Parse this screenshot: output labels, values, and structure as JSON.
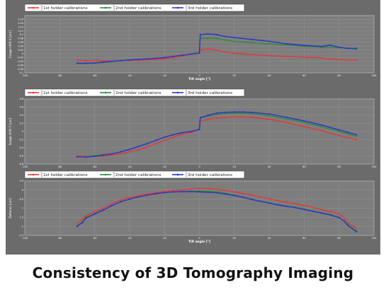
{
  "caption": "Consistency of 3D Tomography Imaging",
  "colors": {
    "figure_background": "#6b6b6b",
    "plot_background": "#7d7d7d",
    "grid": "#9a9a9a",
    "text": "#ffffff"
  },
  "chart_data": [
    {
      "type": "line",
      "title": "",
      "xlabel": "Tilt angle [°]",
      "ylabel": "Image shift X [um]",
      "xlim": [
        -100,
        100
      ],
      "ylim": [
        -0.1,
        0.2
      ],
      "xticks": [
        -100,
        -80,
        -60,
        -40,
        -20,
        0,
        20,
        40,
        60,
        80,
        100
      ],
      "yticks": [
        -0.1,
        -0.08,
        -0.06,
        -0.04,
        -0.02,
        0,
        0.02,
        0.04,
        0.06,
        0.08,
        0.1,
        0.12,
        0.14,
        0.16,
        0.18
      ],
      "yticklabels": [
        "-0.1",
        "-0.08",
        "-0.06",
        "-0.04",
        "-0.02",
        "0",
        "0.02",
        "0.04",
        "0.06",
        "0.08",
        "0.1",
        "0.12",
        "0.14",
        "0.16",
        "0.18"
      ],
      "grid": true,
      "legend": "top-left",
      "series": [
        {
          "name": "1st holder calibrations",
          "color": "#e8353a",
          "x": [
            -70,
            -65,
            -60,
            -55,
            -50,
            -45,
            -40,
            -35,
            -30,
            -25,
            -20,
            -15,
            -10,
            -5,
            0,
            0.5,
            5,
            10,
            15,
            20,
            30,
            40,
            50,
            60,
            70,
            75,
            80,
            85,
            90
          ],
          "y": [
            -0.034,
            -0.037,
            -0.035,
            -0.038,
            -0.04,
            -0.036,
            -0.035,
            -0.034,
            -0.032,
            -0.03,
            -0.027,
            -0.02,
            -0.012,
            -0.003,
            0.004,
            0.02,
            0.025,
            0.018,
            0.008,
            0.002,
            -0.004,
            -0.01,
            -0.014,
            -0.018,
            -0.022,
            -0.027,
            -0.03,
            -0.034,
            -0.033
          ]
        },
        {
          "name": "2nd holder calibrations",
          "color": "#2a8c3a",
          "x": [
            -70,
            -65,
            -60,
            -55,
            -50,
            -45,
            -40,
            -35,
            -30,
            -25,
            -20,
            -15,
            -10,
            -5,
            0,
            0.5,
            5,
            10,
            15,
            20,
            30,
            40,
            50,
            60,
            70,
            75,
            80,
            85,
            90
          ],
          "y": [
            -0.048,
            -0.05,
            -0.05,
            -0.046,
            -0.04,
            -0.036,
            -0.032,
            -0.03,
            -0.027,
            -0.024,
            -0.02,
            -0.014,
            -0.008,
            -0.002,
            0.004,
            0.08,
            0.082,
            0.08,
            0.072,
            0.064,
            0.058,
            0.052,
            0.046,
            0.04,
            0.035,
            0.034,
            0.032,
            0.028,
            0.024
          ]
        },
        {
          "name": "3rd holder calibrations",
          "color": "#2b34c8",
          "x": [
            -70,
            -65,
            -60,
            -55,
            -50,
            -45,
            -40,
            -35,
            -30,
            -25,
            -20,
            -15,
            -10,
            -5,
            0,
            0.5,
            5,
            10,
            15,
            20,
            30,
            40,
            50,
            60,
            70,
            75,
            80,
            85,
            90
          ],
          "y": [
            -0.05,
            -0.05,
            -0.048,
            -0.044,
            -0.04,
            -0.036,
            -0.033,
            -0.03,
            -0.027,
            -0.024,
            -0.02,
            -0.014,
            -0.008,
            -0.002,
            0.004,
            0.1,
            0.104,
            0.1,
            0.09,
            0.085,
            0.075,
            0.065,
            0.052,
            0.044,
            0.038,
            0.045,
            0.034,
            0.028,
            0.028
          ]
        }
      ]
    },
    {
      "type": "line",
      "title": "",
      "xlabel": "",
      "ylabel": "Image shift Y [um]",
      "xlim": [
        -100,
        100
      ],
      "ylim": [
        -0.8,
        0.8
      ],
      "xticks": [
        -100,
        -80,
        -60,
        -40,
        -20,
        0,
        20,
        40,
        60,
        80,
        100
      ],
      "yticks": [
        -0.8,
        -0.6,
        -0.4,
        -0.2,
        0,
        0.2,
        0.4,
        0.6,
        0.8
      ],
      "yticklabels": [
        "-0.8",
        "-0.6",
        "-0.4",
        "-0.2",
        "0",
        "0.2",
        "0.4",
        "0.6",
        "0.8"
      ],
      "grid": true,
      "legend": "top-left",
      "series": [
        {
          "name": "1st holder calibrations",
          "color": "#e8353a",
          "x": [
            -70,
            -65,
            -60,
            -55,
            -50,
            -45,
            -40,
            -35,
            -30,
            -25,
            -20,
            -15,
            -10,
            -5,
            0,
            0.5,
            5,
            10,
            15,
            20,
            25,
            30,
            40,
            50,
            60,
            70,
            80,
            85,
            90
          ],
          "y": [
            -0.6,
            -0.61,
            -0.61,
            -0.6,
            -0.58,
            -0.55,
            -0.5,
            -0.45,
            -0.38,
            -0.3,
            -0.22,
            -0.14,
            -0.07,
            -0.03,
            0.05,
            0.25,
            0.3,
            0.33,
            0.35,
            0.36,
            0.36,
            0.35,
            0.3,
            0.22,
            0.12,
            0.02,
            -0.1,
            -0.15,
            -0.2
          ]
        },
        {
          "name": "2nd holder calibrations",
          "color": "#2a8c3a",
          "x": [
            -70,
            -65,
            -60,
            -55,
            -50,
            -45,
            -40,
            -35,
            -30,
            -25,
            -20,
            -15,
            -10,
            -5,
            0,
            0.5,
            5,
            10,
            15,
            20,
            25,
            30,
            40,
            50,
            60,
            70,
            80,
            85,
            90
          ],
          "y": [
            -0.62,
            -0.62,
            -0.6,
            -0.57,
            -0.55,
            -0.5,
            -0.44,
            -0.37,
            -0.3,
            -0.22,
            -0.14,
            -0.08,
            -0.03,
            0.0,
            0.05,
            0.33,
            0.38,
            0.42,
            0.44,
            0.45,
            0.45,
            0.44,
            0.39,
            0.31,
            0.22,
            0.12,
            0.0,
            -0.06,
            -0.12
          ]
        },
        {
          "name": "3rd holder calibrations",
          "color": "#2b34c8",
          "x": [
            -70,
            -65,
            -60,
            -55,
            -50,
            -45,
            -40,
            -35,
            -30,
            -25,
            -20,
            -15,
            -10,
            -5,
            0,
            0.5,
            5,
            10,
            15,
            20,
            25,
            30,
            40,
            50,
            60,
            70,
            80,
            85,
            90
          ],
          "y": [
            -0.62,
            -0.63,
            -0.61,
            -0.58,
            -0.55,
            -0.5,
            -0.44,
            -0.37,
            -0.3,
            -0.22,
            -0.14,
            -0.08,
            -0.03,
            0.0,
            0.05,
            0.34,
            0.4,
            0.45,
            0.47,
            0.48,
            0.48,
            0.47,
            0.43,
            0.35,
            0.26,
            0.16,
            0.04,
            -0.02,
            -0.08
          ]
        }
      ]
    },
    {
      "type": "line",
      "title": "",
      "xlabel": "Tilt angle [°]",
      "ylabel": "Defocus [um]",
      "xlim": [
        -100,
        100
      ],
      "ylim": [
        -2.5,
        0.5
      ],
      "xticks": [
        -100,
        -80,
        -60,
        -40,
        -20,
        0,
        20,
        40,
        60,
        80,
        100
      ],
      "yticks": [
        -2.5,
        -2,
        -1.5,
        -1,
        -0.5,
        0,
        0.5
      ],
      "yticklabels": [
        "-2.5",
        "-2",
        "-1.5",
        "-1",
        "-0.5",
        "0",
        "0.5"
      ],
      "grid": true,
      "legend": "top-left",
      "series": [
        {
          "name": "1st holder calibrations",
          "color": "#e8353a",
          "x": [
            -70,
            -67,
            -65,
            -60,
            -55,
            -50,
            -45,
            -40,
            -35,
            -30,
            -25,
            -20,
            -15,
            -10,
            -5,
            0,
            5,
            10,
            15,
            20,
            25,
            30,
            35,
            40,
            45,
            50,
            55,
            60,
            65,
            70,
            75,
            80,
            83,
            85,
            90
          ],
          "y": [
            -1.9,
            -1.6,
            -1.4,
            -1.2,
            -1.0,
            -0.75,
            -0.55,
            -0.42,
            -0.32,
            -0.22,
            -0.14,
            -0.08,
            -0.03,
            0.0,
            0.05,
            0.1,
            0.08,
            0.05,
            -0.02,
            -0.1,
            -0.18,
            -0.27,
            -0.38,
            -0.48,
            -0.58,
            -0.68,
            -0.75,
            -0.85,
            -0.95,
            -1.08,
            -1.18,
            -1.3,
            -1.55,
            -1.8,
            -2.1
          ]
        },
        {
          "name": "2nd holder calibrations",
          "color": "#2a8c3a",
          "x": [
            -70,
            -67,
            -65,
            -60,
            -55,
            -50,
            -45,
            -40,
            -35,
            -30,
            -25,
            -20,
            -15,
            -10,
            -5,
            0,
            5,
            10,
            15,
            20,
            25,
            30,
            35,
            40,
            45,
            50,
            55,
            60,
            65,
            70,
            75,
            80,
            83,
            85,
            90
          ],
          "y": [
            -2.0,
            -1.75,
            -1.5,
            -1.3,
            -1.1,
            -0.85,
            -0.65,
            -0.5,
            -0.38,
            -0.28,
            -0.2,
            -0.14,
            -0.1,
            -0.08,
            -0.06,
            -0.05,
            -0.07,
            -0.1,
            -0.18,
            -0.28,
            -0.38,
            -0.5,
            -0.6,
            -0.7,
            -0.8,
            -0.88,
            -0.95,
            -1.05,
            -1.15,
            -1.25,
            -1.35,
            -1.5,
            -1.7,
            -1.9,
            -2.25
          ]
        },
        {
          "name": "3rd holder calibrations",
          "color": "#2b34c8",
          "x": [
            -70,
            -67,
            -65,
            -60,
            -55,
            -50,
            -45,
            -40,
            -35,
            -30,
            -25,
            -20,
            -15,
            -10,
            -5,
            0,
            5,
            10,
            15,
            20,
            25,
            30,
            35,
            40,
            45,
            50,
            55,
            60,
            65,
            70,
            75,
            80,
            83,
            85,
            90
          ],
          "y": [
            -2.0,
            -1.8,
            -1.55,
            -1.32,
            -1.1,
            -0.85,
            -0.64,
            -0.5,
            -0.38,
            -0.28,
            -0.2,
            -0.14,
            -0.1,
            -0.09,
            -0.08,
            -0.1,
            -0.12,
            -0.15,
            -0.22,
            -0.3,
            -0.4,
            -0.52,
            -0.62,
            -0.72,
            -0.82,
            -0.9,
            -0.97,
            -1.07,
            -1.17,
            -1.27,
            -1.37,
            -1.52,
            -1.72,
            -1.95,
            -2.3
          ]
        }
      ]
    }
  ]
}
